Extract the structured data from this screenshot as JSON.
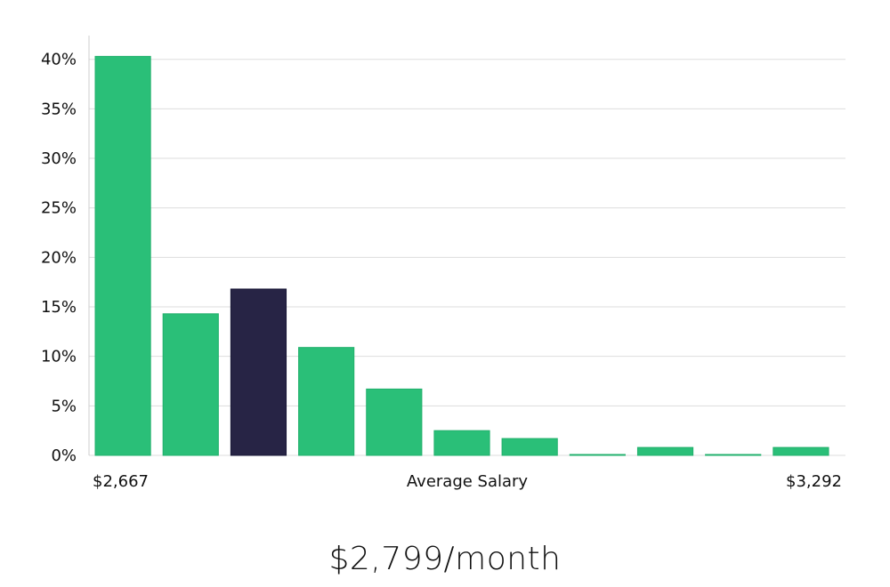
{
  "chart_data": {
    "type": "bar",
    "values": [
      40.3,
      14.3,
      16.8,
      10.9,
      6.7,
      2.5,
      1.7,
      0.05,
      0.8,
      0.05,
      0.8
    ],
    "highlight_index": 2,
    "xlabel": "Average Salary",
    "x_min_label": "$2,667",
    "x_max_label": "$3,292",
    "ylim": [
      0,
      42.4
    ],
    "y_ticks": [
      0,
      5,
      10,
      15,
      20,
      25,
      30,
      35,
      40
    ],
    "y_tick_labels": [
      "0%",
      "5%",
      "10%",
      "15%",
      "20%",
      "25%",
      "30%",
      "35%",
      "40%"
    ],
    "grid": true
  },
  "colors": {
    "bar": "#2abf78",
    "bar_highlight": "#272445",
    "grid": "#dddddd",
    "axis": "#cccccc"
  },
  "headline": "$2,799/month"
}
